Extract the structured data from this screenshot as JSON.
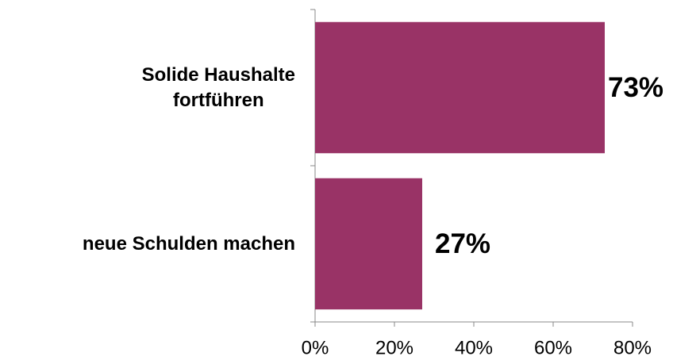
{
  "chart_data": {
    "type": "bar",
    "orientation": "horizontal",
    "categories": [
      "Solide Haushalte\nfortführen",
      "neue Schulden machen"
    ],
    "values": [
      73,
      27
    ],
    "value_labels": [
      "73%",
      "27%"
    ],
    "color": "#993366",
    "xlim": [
      0,
      80
    ],
    "xticks": [
      {
        "value": 0,
        "label": "0%"
      },
      {
        "value": 20,
        "label": "20%"
      },
      {
        "value": 40,
        "label": "40%"
      },
      {
        "value": 60,
        "label": "60%"
      },
      {
        "value": 80,
        "label": "80%"
      }
    ],
    "grid": false
  }
}
